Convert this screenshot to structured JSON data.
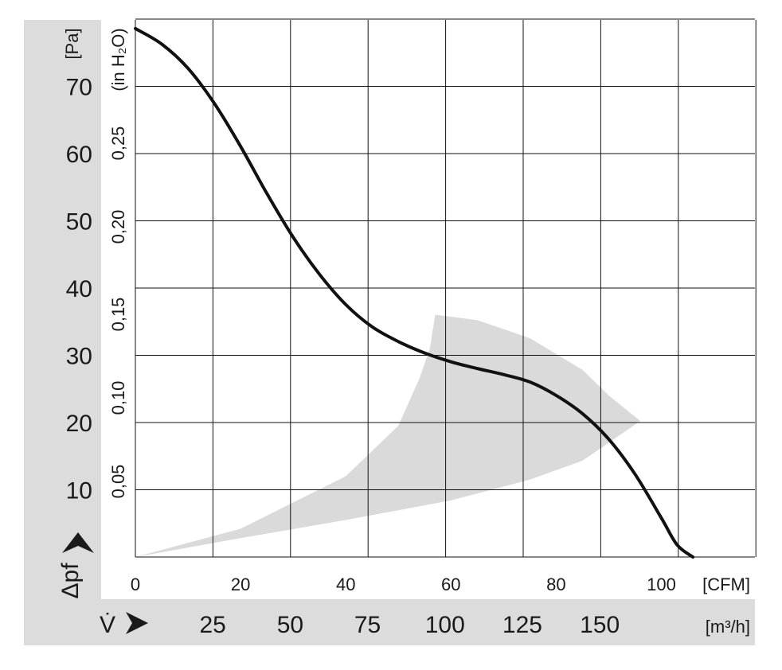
{
  "chart_data": {
    "type": "line",
    "series": [
      {
        "x": [
          0,
          5,
          10,
          15,
          20,
          25,
          30,
          35,
          40,
          45,
          50,
          55,
          60,
          65,
          70,
          75,
          80,
          85,
          90,
          95,
          100,
          103,
          106
        ],
        "y": [
          78.5,
          76.2,
          72.6,
          67.4,
          61.0,
          54.0,
          47.5,
          42.0,
          37.5,
          34.2,
          32.0,
          30.3,
          29.0,
          28.0,
          27.1,
          26.0,
          24.0,
          21.3,
          17.5,
          12.3,
          5.8,
          1.8,
          0
        ]
      }
    ],
    "shaded_region": {
      "upper": [
        [
          0,
          0
        ],
        [
          20,
          4.2
        ],
        [
          40,
          12.0
        ],
        [
          50,
          19.5
        ],
        [
          54,
          26.5
        ],
        [
          56,
          31.0
        ],
        [
          57,
          36.0
        ],
        [
          65,
          35.2
        ],
        [
          75,
          32.5
        ],
        [
          85,
          27.8
        ],
        [
          90,
          24.0
        ],
        [
          96,
          20.2
        ]
      ],
      "lower": [
        [
          0,
          0
        ],
        [
          20,
          2.8
        ],
        [
          40,
          5.5
        ],
        [
          60,
          8.4
        ],
        [
          75,
          11.5
        ],
        [
          85,
          14.3
        ],
        [
          96,
          20.2
        ]
      ],
      "color": "#d9d9d9"
    },
    "x_unit_cfm": "[CFM]",
    "x_ticks_cfm": [
      "0",
      "20",
      "40",
      "60",
      "80",
      "100"
    ],
    "x_unit_m3h": "[m³/h]",
    "x_ticks_m3h": [
      "25",
      "50",
      "75",
      "100",
      "125",
      "150"
    ],
    "x_symbol": "V̇",
    "y_unit_pa": "[Pa]",
    "y_ticks_pa": [
      "10",
      "20",
      "30",
      "40",
      "50",
      "60",
      "70"
    ],
    "y_unit_inh2o": "(in H₂O)",
    "y_ticks_inh2o": [
      "0,05",
      "0,10",
      "0,15",
      "0,20",
      "0,25"
    ],
    "y_symbol": "Δpf",
    "xlim": [
      0,
      118
    ],
    "ylim": [
      0,
      80
    ],
    "grid": true,
    "colors": {
      "curve": "#111111",
      "band": "#dadada",
      "grid": "#111111"
    }
  }
}
